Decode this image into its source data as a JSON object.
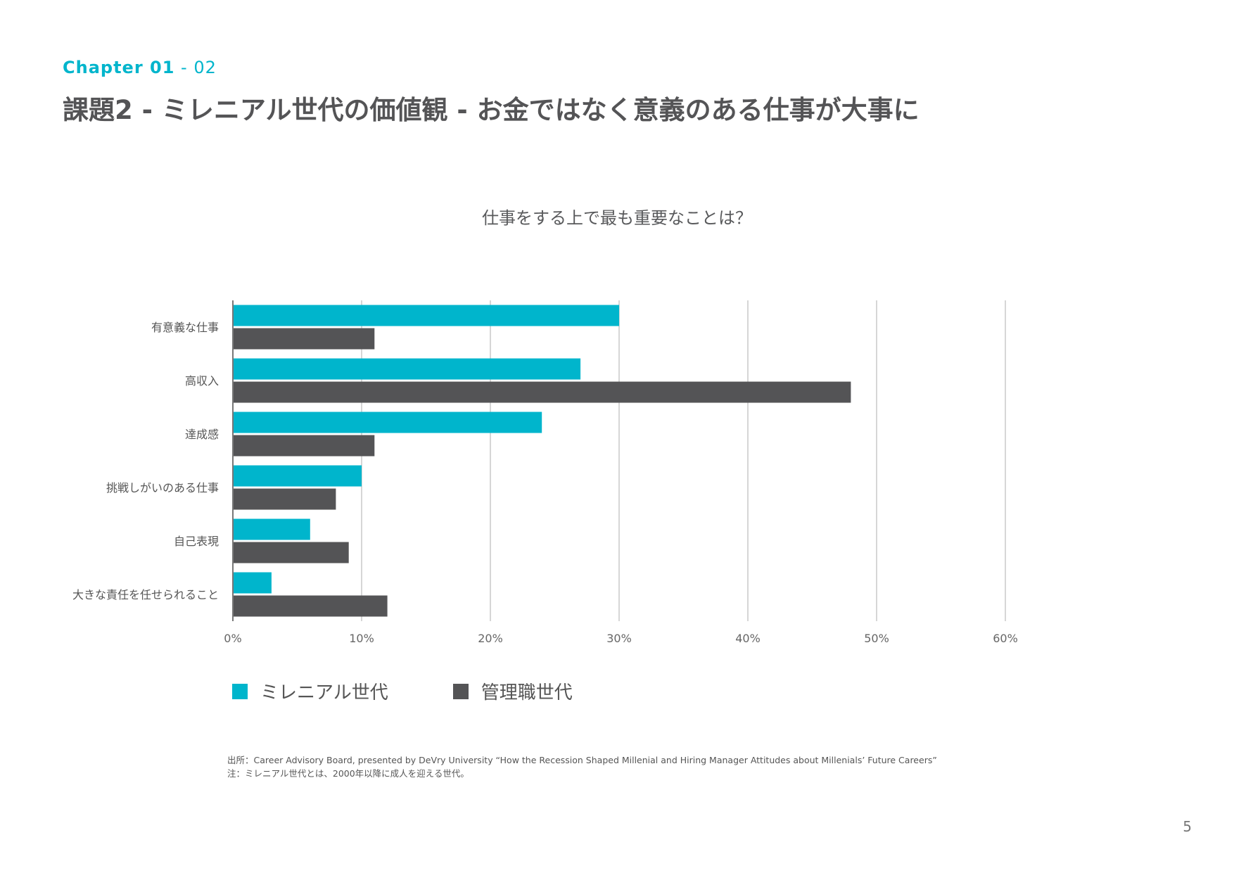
{
  "header": {
    "chapter_label": "Chapter 01",
    "chapter_sep": " - ",
    "chapter_num": "02",
    "title": "課題2 - ミレニアル世代の価値観 - お金ではなく意義のある仕事が大事に"
  },
  "chart_data": {
    "type": "bar",
    "orientation": "horizontal",
    "title": "仕事をする上で最も重要なことは？",
    "categories": [
      "有意義な仕事",
      "高収入",
      "達成感",
      "挑戦しがいのある仕事",
      "自己表現",
      "大きな責任を任せられること"
    ],
    "series": [
      {
        "name": "ミレニアル世代",
        "color": "#00b5cc",
        "values": [
          30,
          27,
          24,
          10,
          6,
          3
        ]
      },
      {
        "name": "管理職世代",
        "color": "#545456",
        "values": [
          11,
          48,
          11,
          8,
          9,
          12
        ]
      }
    ],
    "xlim": [
      0,
      60
    ],
    "x_ticks": [
      "0%",
      "10%",
      "20%",
      "30%",
      "40%",
      "50%",
      "60%"
    ],
    "grid": true,
    "legend_position": "bottom-left"
  },
  "footer": {
    "source": "出所：Career Advisory Board, presented by DeVry University “How the Recession Shaped Millenial and Hiring Manager Attitudes about Millenials’ Future Careers”",
    "note": "注：ミレニアル世代とは、2000年以降に成人を迎える世代。",
    "page_number": "5"
  }
}
